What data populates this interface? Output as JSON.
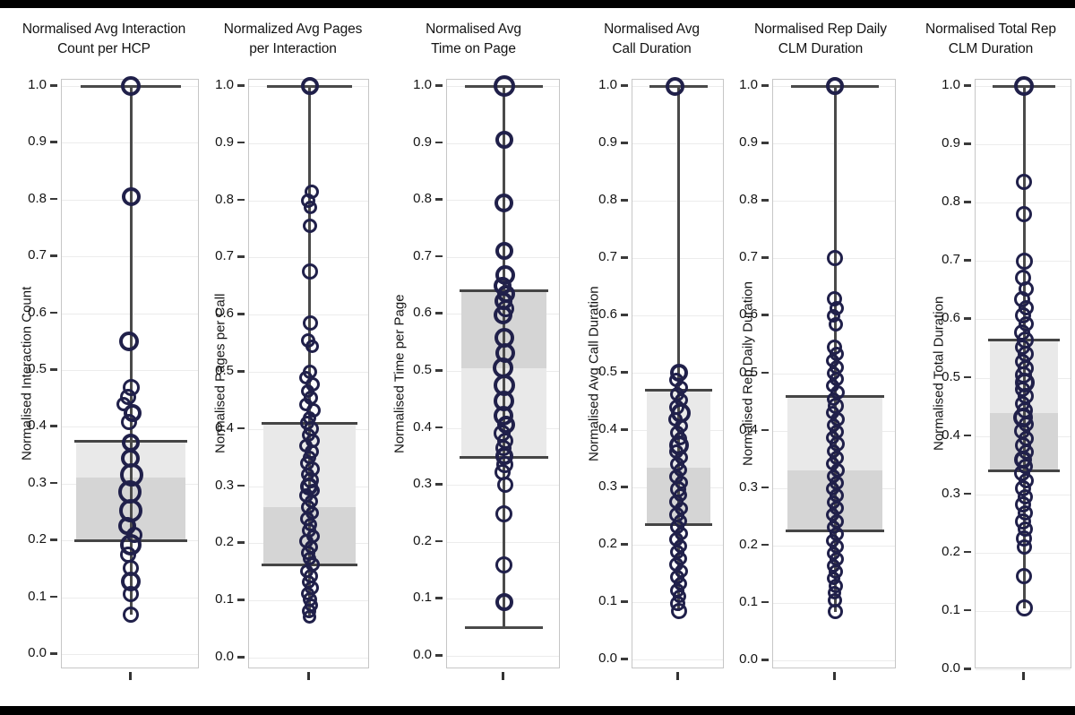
{
  "colors": {
    "point_stroke": "#20204a",
    "box_light": "#e9e9e9",
    "box_dark": "#d5d5d5",
    "whisker": "#4a4a4a",
    "letterbox": "#000000",
    "background": "#ffffff"
  },
  "chart_data": [
    {
      "type": "boxplot-with-points",
      "title": [
        "Normalised Avg Interaction",
        "Count per HCP"
      ],
      "ylabel": "Normalised Interaction Count",
      "yticks": [
        "1.0",
        "0.9",
        "0.8",
        "0.7",
        "0.6",
        "0.5",
        "0.4",
        "0.3",
        "0.2",
        "0.1",
        "0.0"
      ],
      "ylim": [
        0.0,
        1.0
      ],
      "grid": true,
      "box": {
        "q1": 0.2,
        "median": 0.31,
        "q3": 0.375,
        "upper_shade": "light"
      },
      "whisker": {
        "top": 1.0,
        "top_cap": true,
        "bottom": 0.07,
        "bottom_cap": false
      },
      "points": [
        [
          1.0,
          22,
          0
        ],
        [
          0.805,
          21,
          0
        ],
        [
          0.55,
          22,
          -2
        ],
        [
          0.47,
          19,
          0
        ],
        [
          0.452,
          18,
          -3
        ],
        [
          0.44,
          16,
          -8
        ],
        [
          0.425,
          20,
          2
        ],
        [
          0.408,
          18,
          -2
        ],
        [
          0.372,
          20,
          0
        ],
        [
          0.345,
          21,
          -1
        ],
        [
          0.315,
          26,
          1
        ],
        [
          0.285,
          26,
          -1
        ],
        [
          0.252,
          26,
          0
        ],
        [
          0.225,
          20,
          -4
        ],
        [
          0.21,
          18,
          4
        ],
        [
          0.193,
          24,
          0
        ],
        [
          0.175,
          18,
          -3
        ],
        [
          0.152,
          18,
          0
        ],
        [
          0.128,
          22,
          0
        ],
        [
          0.105,
          18,
          0
        ],
        [
          0.07,
          18,
          0
        ]
      ]
    },
    {
      "type": "boxplot-with-points",
      "title": [
        "Normalized Avg Pages",
        "per Interaction"
      ],
      "ylabel": "Normalised Pages per Call",
      "yticks": [
        "1.0",
        "0.9",
        "0.8",
        "0.7",
        "0.6",
        "0.5",
        "0.4",
        "0.3",
        "0.2",
        "0.1",
        "0.0"
      ],
      "ylim": [
        0.0,
        1.0
      ],
      "grid": true,
      "box": {
        "q1": 0.163,
        "median": 0.263,
        "q3": 0.41,
        "upper_shade": "light"
      },
      "whisker": {
        "top": 1.0,
        "top_cap": true,
        "bottom": 0.072,
        "bottom_cap": false
      },
      "points": [
        [
          1.0,
          20,
          0
        ],
        [
          0.815,
          16,
          2
        ],
        [
          0.8,
          16,
          -2
        ],
        [
          0.787,
          15,
          1
        ],
        [
          0.755,
          16,
          0
        ],
        [
          0.675,
          18,
          0
        ],
        [
          0.585,
          17,
          1
        ],
        [
          0.555,
          16,
          -2
        ],
        [
          0.545,
          15,
          3
        ],
        [
          0.5,
          16,
          0
        ],
        [
          0.49,
          15,
          -4
        ],
        [
          0.478,
          16,
          3
        ],
        [
          0.466,
          15,
          -2
        ],
        [
          0.455,
          16,
          1
        ],
        [
          0.443,
          15,
          -4
        ],
        [
          0.432,
          16,
          4
        ],
        [
          0.42,
          15,
          0
        ],
        [
          0.41,
          16,
          -3
        ],
        [
          0.4,
          17,
          2
        ],
        [
          0.39,
          15,
          -1
        ],
        [
          0.38,
          16,
          3
        ],
        [
          0.37,
          15,
          -4
        ],
        [
          0.36,
          16,
          2
        ],
        [
          0.35,
          15,
          0
        ],
        [
          0.34,
          16,
          -3
        ],
        [
          0.33,
          17,
          3
        ],
        [
          0.32,
          15,
          -2
        ],
        [
          0.31,
          18,
          1
        ],
        [
          0.3,
          20,
          -1
        ],
        [
          0.292,
          15,
          4
        ],
        [
          0.283,
          16,
          -4
        ],
        [
          0.273,
          15,
          2
        ],
        [
          0.263,
          16,
          -2
        ],
        [
          0.253,
          15,
          3
        ],
        [
          0.243,
          16,
          -3
        ],
        [
          0.233,
          15,
          1
        ],
        [
          0.223,
          16,
          -1
        ],
        [
          0.213,
          15,
          4
        ],
        [
          0.203,
          16,
          -4
        ],
        [
          0.193,
          15,
          2
        ],
        [
          0.183,
          16,
          -2
        ],
        [
          0.173,
          15,
          0
        ],
        [
          0.163,
          16,
          3
        ],
        [
          0.152,
          15,
          -3
        ],
        [
          0.142,
          16,
          1
        ],
        [
          0.132,
          15,
          -1
        ],
        [
          0.122,
          16,
          2
        ],
        [
          0.112,
          15,
          -2
        ],
        [
          0.102,
          16,
          0
        ],
        [
          0.092,
          15,
          2
        ],
        [
          0.082,
          16,
          -1
        ],
        [
          0.072,
          15,
          0
        ]
      ]
    },
    {
      "type": "boxplot-with-points",
      "title": [
        "Normalised Avg",
        "Time on Page"
      ],
      "ylabel": "Normalised Time per Page",
      "yticks": [
        "1.0",
        "0.9",
        "0.8",
        "0.7",
        "0.6",
        "0.5",
        "0.4",
        "0.3",
        "0.2",
        "0.1",
        "0.0"
      ],
      "ylim": [
        0.0,
        1.0
      ],
      "grid": true,
      "box": {
        "q1": 0.348,
        "median": 0.505,
        "q3": 0.64,
        "upper_shade": "dark"
      },
      "whisker": {
        "top": 1.0,
        "top_cap": true,
        "bottom": 0.05,
        "bottom_cap": true
      },
      "points": [
        [
          1.0,
          24,
          0
        ],
        [
          0.905,
          20,
          0
        ],
        [
          0.795,
          21,
          0
        ],
        [
          0.71,
          20,
          0
        ],
        [
          0.668,
          22,
          1
        ],
        [
          0.65,
          20,
          -2
        ],
        [
          0.636,
          20,
          2
        ],
        [
          0.622,
          20,
          -1
        ],
        [
          0.61,
          19,
          2
        ],
        [
          0.598,
          21,
          -1
        ],
        [
          0.558,
          22,
          0
        ],
        [
          0.532,
          22,
          1
        ],
        [
          0.505,
          23,
          -1
        ],
        [
          0.475,
          24,
          0
        ],
        [
          0.447,
          23,
          0
        ],
        [
          0.422,
          22,
          -1
        ],
        [
          0.405,
          20,
          2
        ],
        [
          0.39,
          19,
          -2
        ],
        [
          0.377,
          18,
          1
        ],
        [
          0.364,
          18,
          -1
        ],
        [
          0.35,
          20,
          0
        ],
        [
          0.335,
          19,
          1
        ],
        [
          0.322,
          18,
          -2
        ],
        [
          0.3,
          18,
          1
        ],
        [
          0.25,
          19,
          0
        ],
        [
          0.16,
          19,
          0
        ],
        [
          0.095,
          20,
          0
        ]
      ]
    },
    {
      "type": "boxplot-with-points",
      "title": [
        "Normalised Avg",
        "Call Duration"
      ],
      "ylabel": "Normalised Avg Call Duration",
      "yticks": [
        "1.0",
        "0.9",
        "0.8",
        "0.7",
        "0.6",
        "0.5",
        "0.4",
        "0.3",
        "0.2",
        "0.1",
        "0.0"
      ],
      "ylim": [
        0.0,
        1.0
      ],
      "grid": true,
      "box": {
        "q1": 0.235,
        "median": 0.335,
        "q3": 0.47,
        "upper_shade": "light"
      },
      "whisker": {
        "top": 1.0,
        "top_cap": true,
        "bottom": 0.085,
        "bottom_cap": false
      },
      "points": [
        [
          1.0,
          21,
          -4
        ],
        [
          0.5,
          20,
          0
        ],
        [
          0.487,
          16,
          -3
        ],
        [
          0.475,
          15,
          3
        ],
        [
          0.463,
          16,
          -2
        ],
        [
          0.452,
          15,
          3
        ],
        [
          0.44,
          17,
          -2
        ],
        [
          0.43,
          22,
          2
        ],
        [
          0.418,
          16,
          -4
        ],
        [
          0.407,
          15,
          3
        ],
        [
          0.396,
          16,
          -2
        ],
        [
          0.385,
          15,
          2
        ],
        [
          0.374,
          22,
          0
        ],
        [
          0.363,
          16,
          -3
        ],
        [
          0.352,
          15,
          3
        ],
        [
          0.341,
          16,
          -2
        ],
        [
          0.33,
          15,
          2
        ],
        [
          0.319,
          16,
          -3
        ],
        [
          0.308,
          15,
          3
        ],
        [
          0.297,
          18,
          -1
        ],
        [
          0.286,
          15,
          2
        ],
        [
          0.275,
          16,
          -3
        ],
        [
          0.264,
          15,
          3
        ],
        [
          0.253,
          17,
          -2
        ],
        [
          0.242,
          15,
          2
        ],
        [
          0.231,
          16,
          -2
        ],
        [
          0.22,
          15,
          3
        ],
        [
          0.209,
          16,
          -3
        ],
        [
          0.198,
          15,
          2
        ],
        [
          0.187,
          16,
          -2
        ],
        [
          0.176,
          15,
          2
        ],
        [
          0.165,
          16,
          -3
        ],
        [
          0.154,
          15,
          3
        ],
        [
          0.143,
          16,
          -2
        ],
        [
          0.132,
          15,
          2
        ],
        [
          0.121,
          16,
          -2
        ],
        [
          0.11,
          15,
          1
        ],
        [
          0.098,
          17,
          -1
        ],
        [
          0.085,
          18,
          0
        ]
      ]
    },
    {
      "type": "boxplot-with-points",
      "title": [
        "Normalised Rep Daily",
        "CLM Duration"
      ],
      "ylabel": "Normalised Rep Daily Duration",
      "yticks": [
        "1.0",
        "0.9",
        "0.8",
        "0.7",
        "0.6",
        "0.5",
        "0.4",
        "0.3",
        "0.2",
        "0.1",
        "0.0"
      ],
      "ylim": [
        0.0,
        1.0
      ],
      "grid": true,
      "box": {
        "q1": 0.225,
        "median": 0.33,
        "q3": 0.46,
        "upper_shade": "light"
      },
      "whisker": {
        "top": 1.0,
        "top_cap": true,
        "bottom": 0.085,
        "bottom_cap": false
      },
      "points": [
        [
          1.0,
          20,
          0
        ],
        [
          0.7,
          18,
          0
        ],
        [
          0.63,
          17,
          -1
        ],
        [
          0.613,
          16,
          2
        ],
        [
          0.6,
          15,
          -2
        ],
        [
          0.585,
          16,
          1
        ],
        [
          0.545,
          17,
          -1
        ],
        [
          0.533,
          16,
          2
        ],
        [
          0.522,
          15,
          -3
        ],
        [
          0.51,
          16,
          2
        ],
        [
          0.5,
          15,
          -2
        ],
        [
          0.49,
          16,
          2
        ],
        [
          0.478,
          15,
          -3
        ],
        [
          0.467,
          16,
          3
        ],
        [
          0.455,
          15,
          -2
        ],
        [
          0.443,
          18,
          1
        ],
        [
          0.432,
          15,
          -3
        ],
        [
          0.42,
          16,
          3
        ],
        [
          0.409,
          15,
          -2
        ],
        [
          0.398,
          16,
          2
        ],
        [
          0.387,
          15,
          -3
        ],
        [
          0.376,
          17,
          2
        ],
        [
          0.364,
          15,
          -2
        ],
        [
          0.353,
          16,
          2
        ],
        [
          0.342,
          15,
          -3
        ],
        [
          0.331,
          16,
          3
        ],
        [
          0.32,
          15,
          -2
        ],
        [
          0.309,
          16,
          2
        ],
        [
          0.298,
          15,
          -3
        ],
        [
          0.287,
          16,
          2
        ],
        [
          0.276,
          15,
          -2
        ],
        [
          0.265,
          16,
          2
        ],
        [
          0.253,
          15,
          -3
        ],
        [
          0.242,
          16,
          2
        ],
        [
          0.231,
          15,
          -2
        ],
        [
          0.22,
          16,
          2
        ],
        [
          0.209,
          15,
          -3
        ],
        [
          0.198,
          16,
          2
        ],
        [
          0.187,
          15,
          -2
        ],
        [
          0.176,
          16,
          2
        ],
        [
          0.165,
          15,
          -2
        ],
        [
          0.154,
          16,
          1
        ],
        [
          0.142,
          15,
          -2
        ],
        [
          0.13,
          16,
          1
        ],
        [
          0.118,
          15,
          -1
        ],
        [
          0.105,
          16,
          0
        ],
        [
          0.085,
          17,
          0
        ]
      ]
    },
    {
      "type": "boxplot-with-points",
      "title": [
        "Normalised Total Rep",
        "CLM Duration"
      ],
      "ylabel": "Normalised Total Duration",
      "yticks": [
        "1.0",
        "0.9",
        "0.8",
        "0.7",
        "0.6",
        "0.5",
        "0.4",
        "0.3",
        "0.2",
        "0.1",
        "0.0"
      ],
      "ylim": [
        0.0,
        1.0
      ],
      "grid": true,
      "box": {
        "q1": 0.34,
        "median": 0.44,
        "q3": 0.565,
        "upper_shade": "light"
      },
      "whisker": {
        "top": 1.0,
        "top_cap": true,
        "bottom": 0.105,
        "bottom_cap": false
      },
      "points": [
        [
          1.0,
          22,
          0
        ],
        [
          0.835,
          18,
          0
        ],
        [
          0.78,
          18,
          0
        ],
        [
          0.7,
          19,
          0
        ],
        [
          0.672,
          18,
          -1
        ],
        [
          0.652,
          17,
          2
        ],
        [
          0.635,
          18,
          -2
        ],
        [
          0.62,
          17,
          2
        ],
        [
          0.606,
          18,
          -1
        ],
        [
          0.592,
          17,
          2
        ],
        [
          0.578,
          18,
          -2
        ],
        [
          0.565,
          19,
          1
        ],
        [
          0.552,
          17,
          -2
        ],
        [
          0.54,
          18,
          2
        ],
        [
          0.528,
          17,
          -2
        ],
        [
          0.516,
          18,
          2
        ],
        [
          0.504,
          19,
          -1
        ],
        [
          0.492,
          22,
          1
        ],
        [
          0.48,
          17,
          -2
        ],
        [
          0.468,
          18,
          2
        ],
        [
          0.456,
          17,
          -2
        ],
        [
          0.444,
          18,
          1
        ],
        [
          0.432,
          22,
          -1
        ],
        [
          0.42,
          17,
          2
        ],
        [
          0.408,
          18,
          -2
        ],
        [
          0.396,
          17,
          2
        ],
        [
          0.384,
          18,
          -1
        ],
        [
          0.372,
          17,
          2
        ],
        [
          0.36,
          20,
          -1
        ],
        [
          0.348,
          17,
          1
        ],
        [
          0.336,
          18,
          -2
        ],
        [
          0.324,
          17,
          2
        ],
        [
          0.31,
          18,
          -1
        ],
        [
          0.296,
          17,
          1
        ],
        [
          0.282,
          18,
          -1
        ],
        [
          0.268,
          17,
          1
        ],
        [
          0.254,
          18,
          -1
        ],
        [
          0.24,
          17,
          1
        ],
        [
          0.225,
          18,
          0
        ],
        [
          0.21,
          17,
          0
        ],
        [
          0.16,
          18,
          0
        ],
        [
          0.105,
          19,
          0
        ]
      ]
    }
  ]
}
